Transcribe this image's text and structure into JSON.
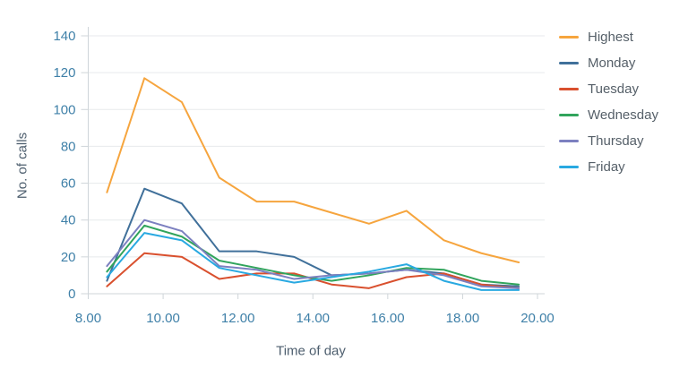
{
  "chart_data": {
    "type": "line",
    "title": "",
    "xlabel": "Time of day",
    "ylabel": "No. of calls",
    "x": [
      8.5,
      9.5,
      10.5,
      11.5,
      12.5,
      13.5,
      14.5,
      15.5,
      16.5,
      17.5,
      18.5,
      19.5
    ],
    "series": [
      {
        "name": "Highest",
        "color": "#f6a53e",
        "values": [
          55,
          117,
          104,
          63,
          50,
          50,
          44,
          38,
          45,
          29,
          22,
          17
        ]
      },
      {
        "name": "Monday",
        "color": "#40709a",
        "values": [
          7,
          57,
          49,
          23,
          23,
          20,
          10,
          11,
          13,
          11,
          5,
          4
        ]
      },
      {
        "name": "Tuesday",
        "color": "#d9502e",
        "values": [
          4,
          22,
          20,
          8,
          11,
          11,
          5,
          3,
          9,
          11,
          5,
          3
        ]
      },
      {
        "name": "Wednesday",
        "color": "#31a45c",
        "values": [
          12,
          37,
          31,
          18,
          14,
          10,
          7,
          10,
          14,
          13,
          7,
          5
        ]
      },
      {
        "name": "Thursday",
        "color": "#7c80c0",
        "values": [
          15,
          40,
          34,
          15,
          13,
          8,
          10,
          11,
          13,
          10,
          4,
          3
        ]
      },
      {
        "name": "Friday",
        "color": "#29a9e1",
        "values": [
          9,
          33,
          29,
          14,
          10,
          6,
          9,
          12,
          16,
          7,
          2,
          2
        ]
      }
    ],
    "x_axis": {
      "tick_labels": [
        "8.00",
        "10.00",
        "12.00",
        "14.00",
        "16.00",
        "18.00",
        "20.00"
      ],
      "tick_values": [
        8,
        10,
        12,
        14,
        16,
        18,
        20
      ],
      "min": 8,
      "max": 20
    },
    "y_axis": {
      "tick_labels": [
        "0",
        "20",
        "40",
        "60",
        "80",
        "100",
        "120",
        "140"
      ],
      "tick_values": [
        0,
        20,
        40,
        60,
        80,
        100,
        120,
        140
      ],
      "min": 0,
      "max": 140
    },
    "grid": "horizontal",
    "legend_position": "right",
    "colors": {
      "tick_label": "#3f80a8",
      "axis_title": "#4d5e6e",
      "legend_text": "#566069",
      "gridline": "#e7eaec",
      "axis_line": "#cfd5d9"
    }
  }
}
